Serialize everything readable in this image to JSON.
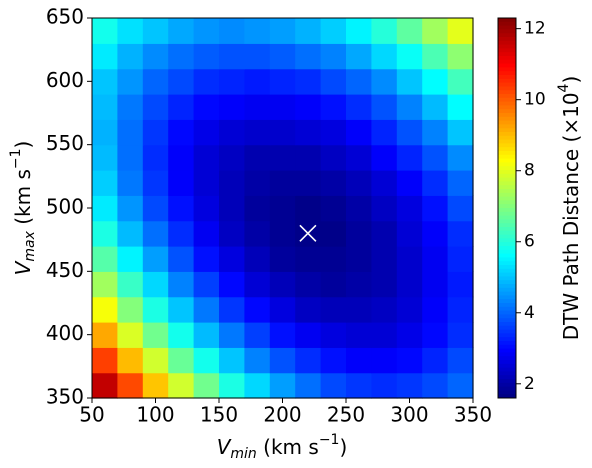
{
  "chart_data": {
    "type": "heatmap",
    "xlabel": [
      "V",
      "min",
      " (km s",
      "−1",
      ")"
    ],
    "ylabel": [
      "V",
      "max",
      " (km s",
      "−1",
      ")"
    ],
    "colorbar_label": [
      "DTW Path Distance (×10",
      "4",
      ")"
    ],
    "colormap": "jet",
    "clim": [
      1.6,
      12.3
    ],
    "cticks": [
      2,
      4,
      6,
      8,
      10,
      12
    ],
    "xlim": [
      50,
      350
    ],
    "ylim": [
      350,
      650
    ],
    "xticks": [
      50,
      100,
      150,
      200,
      250,
      300,
      350
    ],
    "yticks": [
      350,
      400,
      450,
      500,
      550,
      600,
      650
    ],
    "x": [
      60,
      80,
      100,
      120,
      140,
      160,
      180,
      200,
      220,
      240,
      260,
      280,
      300,
      320,
      340
    ],
    "y": [
      360,
      380,
      400,
      420,
      440,
      460,
      480,
      500,
      520,
      540,
      560,
      580,
      600,
      620,
      640
    ],
    "z": [
      [
        11.6,
        10.2,
        8.9,
        7.8,
        6.8,
        5.9,
        5.2,
        4.6,
        4.1,
        3.7,
        3.5,
        3.4,
        3.5,
        3.7,
        4.0
      ],
      [
        10.3,
        9.0,
        7.8,
        6.7,
        5.8,
        5.0,
        4.3,
        3.8,
        3.4,
        3.1,
        2.9,
        2.9,
        3.0,
        3.3,
        3.7
      ],
      [
        9.2,
        7.9,
        6.8,
        5.8,
        4.9,
        4.2,
        3.6,
        3.1,
        2.8,
        2.6,
        2.5,
        2.5,
        2.7,
        3.0,
        3.4
      ],
      [
        8.2,
        7.0,
        5.9,
        5.0,
        4.2,
        3.5,
        3.0,
        2.6,
        2.3,
        2.2,
        2.2,
        2.3,
        2.5,
        2.9,
        3.3
      ],
      [
        7.3,
        6.2,
        5.2,
        4.3,
        3.6,
        3.0,
        2.5,
        2.2,
        2.0,
        1.9,
        2.0,
        2.1,
        2.4,
        2.8,
        3.2
      ],
      [
        6.5,
        5.5,
        4.6,
        3.8,
        3.1,
        2.6,
        2.2,
        1.9,
        1.8,
        1.8,
        1.9,
        2.1,
        2.4,
        2.8,
        3.3
      ],
      [
        5.9,
        4.9,
        4.1,
        3.4,
        2.8,
        2.3,
        2.0,
        1.8,
        1.7,
        1.7,
        1.9,
        2.1,
        2.5,
        2.9,
        3.4
      ],
      [
        5.4,
        4.5,
        3.7,
        3.1,
        2.6,
        2.2,
        1.9,
        1.8,
        1.7,
        1.8,
        2.0,
        2.3,
        2.6,
        3.1,
        3.7
      ],
      [
        5.1,
        4.2,
        3.5,
        2.9,
        2.5,
        2.2,
        2.0,
        1.9,
        1.9,
        2.0,
        2.2,
        2.5,
        2.9,
        3.4,
        4.0
      ],
      [
        4.9,
        4.1,
        3.4,
        2.9,
        2.5,
        2.3,
        2.1,
        2.1,
        2.1,
        2.3,
        2.5,
        2.9,
        3.3,
        3.8,
        4.4
      ],
      [
        4.8,
        4.1,
        3.5,
        3.0,
        2.7,
        2.5,
        2.4,
        2.4,
        2.5,
        2.6,
        2.9,
        3.3,
        3.8,
        4.3,
        5.0
      ],
      [
        4.9,
        4.2,
        3.7,
        3.3,
        3.0,
        2.9,
        2.8,
        2.8,
        2.9,
        3.1,
        3.4,
        3.8,
        4.3,
        4.9,
        5.6
      ],
      [
        5.0,
        4.5,
        4.0,
        3.7,
        3.4,
        3.3,
        3.2,
        3.3,
        3.4,
        3.7,
        4.0,
        4.4,
        5.0,
        5.6,
        6.3
      ],
      [
        5.4,
        4.8,
        4.4,
        4.1,
        3.9,
        3.8,
        3.8,
        3.9,
        4.1,
        4.3,
        4.7,
        5.2,
        5.7,
        6.4,
        7.1
      ],
      [
        5.8,
        5.3,
        5.0,
        4.7,
        4.5,
        4.4,
        4.5,
        4.6,
        4.8,
        5.1,
        5.5,
        6.0,
        6.6,
        7.3,
        8.0
      ]
    ],
    "marker": {
      "x": 220,
      "y": 480,
      "color": "#ffffff"
    }
  }
}
